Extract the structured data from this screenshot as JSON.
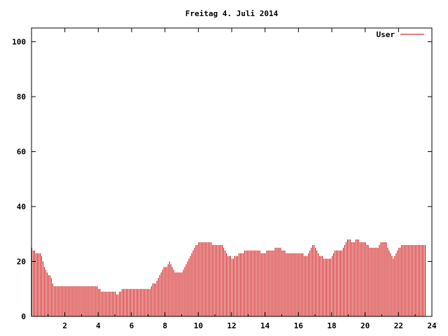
{
  "chart_data": {
    "type": "bar",
    "title": "Freitag 4. Juli 2014",
    "xlabel": "",
    "ylabel": "",
    "xlim": [
      0,
      24
    ],
    "ylim": [
      0,
      105
    ],
    "x_ticks": [
      "2",
      "4",
      "6",
      "8",
      "10",
      "12",
      "14",
      "16",
      "18",
      "20",
      "22",
      "24"
    ],
    "y_ticks": [
      "0",
      "20",
      "40",
      "60",
      "80",
      "100"
    ],
    "grid": false,
    "legend_position": "top-right",
    "series": [
      {
        "name": "User",
        "color": "#cc0000",
        "sample_minutes": 5,
        "values": [
          25,
          24,
          24,
          23,
          23,
          23,
          23,
          22,
          20,
          18,
          17,
          16,
          15,
          15,
          14,
          12,
          11,
          11,
          11,
          11,
          11,
          11,
          11,
          11,
          11,
          11,
          11,
          11,
          11,
          11,
          11,
          11,
          11,
          11,
          11,
          11,
          11,
          11,
          11,
          11,
          11,
          11,
          11,
          11,
          11,
          11,
          11,
          11,
          10,
          10,
          9,
          9,
          9,
          9,
          9,
          9,
          9,
          9,
          9,
          9,
          9,
          8,
          8,
          9,
          9,
          10,
          10,
          10,
          10,
          10,
          10,
          10,
          10,
          10,
          10,
          10,
          10,
          10,
          10,
          10,
          10,
          10,
          10,
          10,
          10,
          10,
          11,
          12,
          12,
          12,
          13,
          14,
          15,
          16,
          17,
          18,
          18,
          18,
          19,
          20,
          19,
          18,
          17,
          16,
          16,
          16,
          16,
          16,
          16,
          17,
          18,
          19,
          20,
          21,
          22,
          23,
          24,
          25,
          26,
          26,
          27,
          27,
          27,
          27,
          27,
          27,
          27,
          27,
          27,
          27,
          26,
          26,
          26,
          26,
          26,
          26,
          26,
          26,
          25,
          24,
          23,
          22,
          22,
          22,
          21,
          21,
          22,
          22,
          22,
          23,
          23,
          23,
          23,
          24,
          24,
          24,
          24,
          24,
          24,
          24,
          24,
          24,
          24,
          24,
          24,
          23,
          23,
          23,
          23,
          24,
          24,
          24,
          24,
          24,
          24,
          25,
          25,
          25,
          25,
          25,
          24,
          24,
          24,
          23,
          23,
          23,
          23,
          23,
          23,
          23,
          23,
          23,
          23,
          23,
          23,
          23,
          22,
          22,
          22,
          23,
          24,
          25,
          26,
          26,
          25,
          24,
          23,
          22,
          22,
          22,
          21,
          21,
          21,
          21,
          21,
          21,
          22,
          23,
          24,
          24,
          24,
          24,
          24,
          24,
          25,
          26,
          27,
          28,
          28,
          28,
          27,
          27,
          27,
          28,
          28,
          28,
          27,
          27,
          27,
          27,
          27,
          26,
          26,
          25,
          25,
          25,
          25,
          25,
          25,
          25,
          26,
          27,
          27,
          27,
          27,
          27,
          25,
          24,
          23,
          22,
          21,
          22,
          23,
          24,
          25,
          25,
          26,
          26,
          26,
          26,
          26,
          26,
          26,
          26,
          26,
          26,
          26,
          26,
          26,
          26,
          26,
          26,
          26,
          26
        ]
      }
    ]
  }
}
